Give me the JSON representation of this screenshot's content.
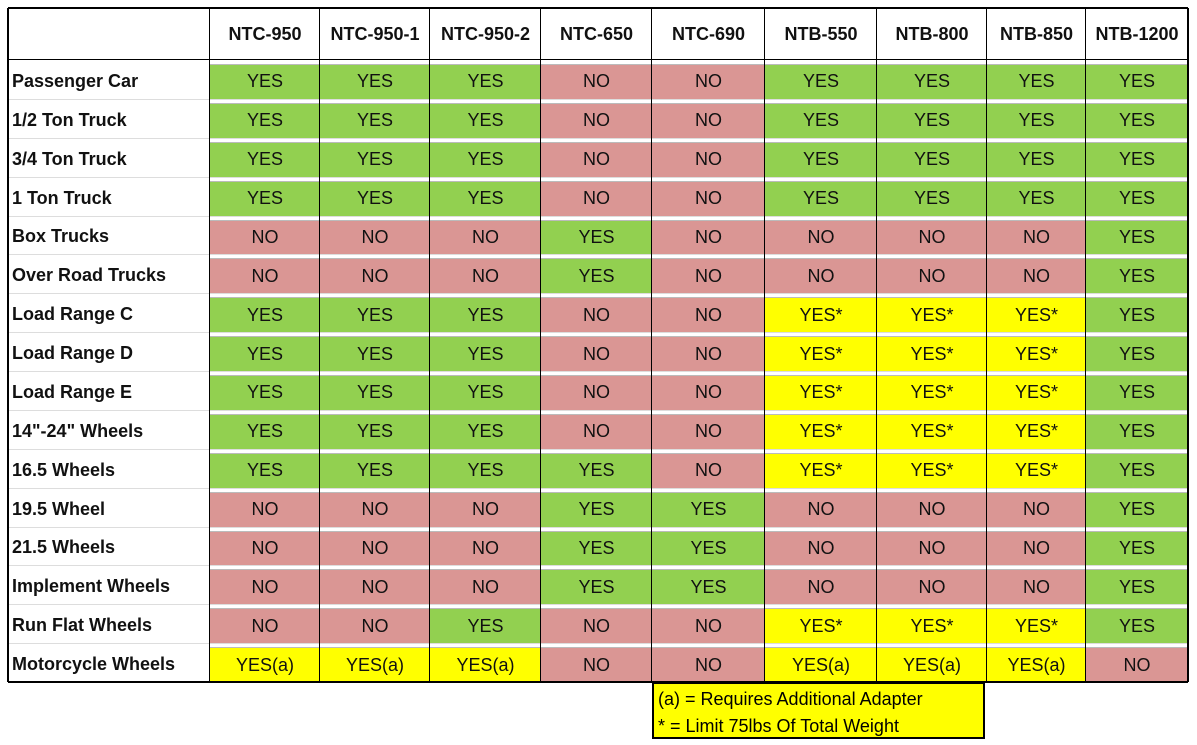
{
  "table": {
    "columns": [
      "NTC-950",
      "NTC-950-1",
      "NTC-950-2",
      "NTC-650",
      "NTC-690",
      "NTB-550",
      "NTB-800",
      "NTB-850",
      "NTB-1200"
    ],
    "rows": [
      {
        "label": "Passenger Car",
        "cells": [
          "YES",
          "YES",
          "YES",
          "NO",
          "NO",
          "YES",
          "YES",
          "YES",
          "YES"
        ]
      },
      {
        "label": "1/2 Ton Truck",
        "cells": [
          "YES",
          "YES",
          "YES",
          "NO",
          "NO",
          "YES",
          "YES",
          "YES",
          "YES"
        ]
      },
      {
        "label": "3/4 Ton Truck",
        "cells": [
          "YES",
          "YES",
          "YES",
          "NO",
          "NO",
          "YES",
          "YES",
          "YES",
          "YES"
        ]
      },
      {
        "label": "1 Ton Truck",
        "cells": [
          "YES",
          "YES",
          "YES",
          "NO",
          "NO",
          "YES",
          "YES",
          "YES",
          "YES"
        ]
      },
      {
        "label": "Box Trucks",
        "cells": [
          "NO",
          "NO",
          "NO",
          "YES",
          "NO",
          "NO",
          "NO",
          "NO",
          "YES"
        ]
      },
      {
        "label": "Over Road Trucks",
        "cells": [
          "NO",
          "NO",
          "NO",
          "YES",
          "NO",
          "NO",
          "NO",
          "NO",
          "YES"
        ]
      },
      {
        "label": "Load Range C",
        "cells": [
          "YES",
          "YES",
          "YES",
          "NO",
          "NO",
          "YES*",
          "YES*",
          "YES*",
          "YES"
        ]
      },
      {
        "label": "Load Range D",
        "cells": [
          "YES",
          "YES",
          "YES",
          "NO",
          "NO",
          "YES*",
          "YES*",
          "YES*",
          "YES"
        ]
      },
      {
        "label": "Load Range E",
        "cells": [
          "YES",
          "YES",
          "YES",
          "NO",
          "NO",
          "YES*",
          "YES*",
          "YES*",
          "YES"
        ]
      },
      {
        "label": "14\"-24\" Wheels",
        "cells": [
          "YES",
          "YES",
          "YES",
          "NO",
          "NO",
          "YES*",
          "YES*",
          "YES*",
          "YES"
        ]
      },
      {
        "label": "16.5 Wheels",
        "cells": [
          "YES",
          "YES",
          "YES",
          "YES",
          "NO",
          "YES*",
          "YES*",
          "YES*",
          "YES"
        ]
      },
      {
        "label": "19.5 Wheel",
        "cells": [
          "NO",
          "NO",
          "NO",
          "YES",
          "YES",
          "NO",
          "NO",
          "NO",
          "YES"
        ]
      },
      {
        "label": "21.5 Wheels",
        "cells": [
          "NO",
          "NO",
          "NO",
          "YES",
          "YES",
          "NO",
          "NO",
          "NO",
          "YES"
        ]
      },
      {
        "label": "Implement Wheels",
        "cells": [
          "NO",
          "NO",
          "NO",
          "YES",
          "YES",
          "NO",
          "NO",
          "NO",
          "YES"
        ]
      },
      {
        "label": "Run Flat Wheels",
        "cells": [
          "NO",
          "NO",
          "YES",
          "NO",
          "NO",
          "YES*",
          "YES*",
          "YES*",
          "YES"
        ]
      },
      {
        "label": "Motorcycle Wheels",
        "cells": [
          "YES(a)",
          "YES(a)",
          "YES(a)",
          "NO",
          "NO",
          "YES(a)",
          "YES(a)",
          "YES(a)",
          "NO"
        ]
      }
    ],
    "cell_colors": {
      "YES": "#92d050",
      "NO": "#da9694",
      "YES*": "#ffff00",
      "YES(a)": "#ffff00"
    },
    "legend": [
      "(a) = Requires Additional Adapter",
      "* = Limit 75lbs Of Total Weight"
    ]
  }
}
